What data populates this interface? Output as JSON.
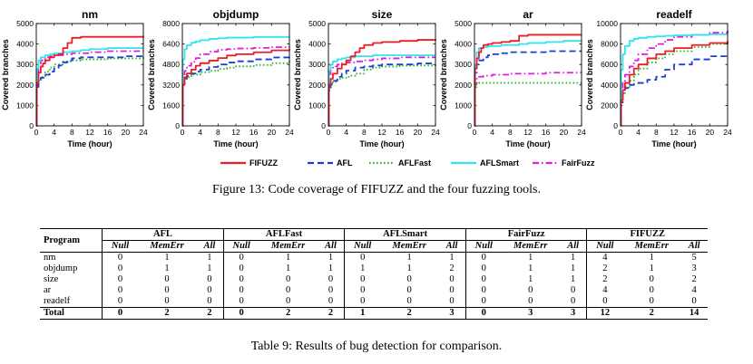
{
  "chart_data": [
    {
      "type": "line",
      "title": "nm",
      "xlabel": "Time (hour)",
      "ylabel": "Covered branches",
      "xlim": [
        0,
        24
      ],
      "ylim": [
        0,
        5000
      ],
      "xticks": [
        0,
        4,
        8,
        12,
        16,
        20,
        24
      ],
      "yticks": [
        0,
        1000,
        2000,
        3000,
        4000,
        5000
      ],
      "series": [
        {
          "name": "FIFUZZ",
          "x": [
            0,
            0.1,
            0.5,
            1,
            1.5,
            2,
            3,
            4,
            5,
            6,
            7,
            8,
            10,
            12,
            16,
            20,
            24
          ],
          "y": [
            0,
            2100,
            2600,
            2900,
            3050,
            3200,
            3350,
            3450,
            3500,
            3800,
            4050,
            4300,
            4350,
            4350,
            4350,
            4350,
            4400
          ]
        },
        {
          "name": "AFL",
          "x": [
            0,
            0.1,
            0.5,
            1,
            2,
            3,
            4,
            5,
            6,
            7,
            8,
            10,
            12,
            16,
            20,
            24
          ],
          "y": [
            0,
            1900,
            2200,
            2350,
            2500,
            2650,
            2800,
            2950,
            3100,
            3200,
            3300,
            3350,
            3350,
            3350,
            3400,
            3400
          ]
        },
        {
          "name": "AFLFast",
          "x": [
            0,
            0.1,
            0.5,
            1,
            2,
            3,
            4,
            6,
            8,
            10,
            12,
            16,
            20,
            24
          ],
          "y": [
            0,
            2000,
            2200,
            2400,
            2650,
            2850,
            3000,
            3150,
            3200,
            3250,
            3250,
            3300,
            3300,
            3350
          ]
        },
        {
          "name": "AFLSmart",
          "x": [
            0,
            0.1,
            0.5,
            1,
            2,
            3,
            4,
            6,
            8,
            10,
            12,
            16,
            20,
            24
          ],
          "y": [
            0,
            2800,
            3200,
            3350,
            3450,
            3500,
            3550,
            3600,
            3650,
            3700,
            3750,
            3800,
            3800,
            3800
          ]
        },
        {
          "name": "FairFuzz",
          "x": [
            0,
            0.1,
            0.5,
            1,
            2,
            3,
            4,
            6,
            8,
            12,
            16,
            20,
            24
          ],
          "y": [
            0,
            2600,
            3050,
            3200,
            3350,
            3400,
            3450,
            3500,
            3550,
            3600,
            3650,
            3650,
            3650
          ]
        }
      ]
    },
    {
      "type": "line",
      "title": "objdump",
      "xlabel": "Time (hour)",
      "ylabel": "Covered branches",
      "xlim": [
        0,
        24
      ],
      "ylim": [
        0,
        8000
      ],
      "xticks": [
        0,
        4,
        8,
        12,
        16,
        20,
        24
      ],
      "yticks": [
        0,
        1600,
        3200,
        4800,
        6400,
        8000
      ],
      "series": [
        {
          "name": "FIFUZZ",
          "x": [
            0,
            0.1,
            0.5,
            1,
            2,
            3,
            4,
            6,
            8,
            10,
            12,
            16,
            20,
            24
          ],
          "y": [
            0,
            3200,
            3800,
            4100,
            4400,
            4700,
            4900,
            5100,
            5300,
            5500,
            5600,
            5750,
            5900,
            6000
          ]
        },
        {
          "name": "AFL",
          "x": [
            0,
            0.1,
            0.5,
            1,
            2,
            3,
            4,
            6,
            8,
            10,
            12,
            16,
            20,
            24
          ],
          "y": [
            0,
            3300,
            3700,
            3900,
            4100,
            4250,
            4400,
            4600,
            4800,
            4950,
            5050,
            5200,
            5350,
            5450
          ]
        },
        {
          "name": "AFLFast",
          "x": [
            0,
            0.1,
            0.5,
            1,
            2,
            4,
            6,
            8,
            10,
            12,
            16,
            20,
            24
          ],
          "y": [
            0,
            3300,
            3600,
            3800,
            4000,
            4200,
            4300,
            4450,
            4550,
            4650,
            4750,
            4900,
            5100
          ]
        },
        {
          "name": "AFLSmart",
          "x": [
            0,
            0.1,
            0.5,
            1,
            2,
            3,
            4,
            6,
            8,
            10,
            12,
            16,
            20,
            24
          ],
          "y": [
            0,
            5200,
            6000,
            6300,
            6500,
            6600,
            6700,
            6800,
            6850,
            6900,
            6900,
            6950,
            6950,
            6950
          ]
        },
        {
          "name": "FairFuzz",
          "x": [
            0,
            0.1,
            0.5,
            1,
            2,
            3,
            4,
            6,
            8,
            10,
            12,
            16,
            20,
            24
          ],
          "y": [
            0,
            3800,
            4300,
            4700,
            5000,
            5300,
            5600,
            5800,
            5950,
            6000,
            6050,
            6100,
            6150,
            6200
          ]
        }
      ]
    },
    {
      "type": "line",
      "title": "size",
      "xlabel": "Time (hour)",
      "ylabel": "Covered branches",
      "xlim": [
        0,
        24
      ],
      "ylim": [
        0,
        5000
      ],
      "xticks": [
        0,
        4,
        8,
        12,
        16,
        20,
        24
      ],
      "yticks": [
        0,
        1000,
        2000,
        3000,
        4000,
        5000
      ],
      "series": [
        {
          "name": "FIFUZZ",
          "x": [
            0,
            0.1,
            0.5,
            1,
            2,
            3,
            4,
            5,
            6,
            7,
            8,
            10,
            12,
            16,
            20,
            24
          ],
          "y": [
            0,
            2000,
            2300,
            2550,
            2800,
            3000,
            3200,
            3400,
            3600,
            3800,
            3950,
            4050,
            4100,
            4150,
            4200,
            4250
          ]
        },
        {
          "name": "AFL",
          "x": [
            0,
            0.1,
            0.5,
            1,
            2,
            3,
            4,
            6,
            8,
            10,
            12,
            16,
            20,
            24
          ],
          "y": [
            0,
            1800,
            2050,
            2200,
            2400,
            2550,
            2700,
            2850,
            2900,
            2950,
            3000,
            3000,
            3050,
            3050
          ]
        },
        {
          "name": "AFLFast",
          "x": [
            0,
            0.1,
            0.5,
            1,
            2,
            3,
            4,
            5,
            6,
            8,
            10,
            12,
            16,
            20,
            24
          ],
          "y": [
            0,
            1750,
            2000,
            2150,
            2300,
            2350,
            2400,
            2450,
            2550,
            2750,
            2850,
            2900,
            2950,
            2950,
            3000
          ]
        },
        {
          "name": "AFLSmart",
          "x": [
            0,
            0.1,
            0.5,
            1,
            2,
            3,
            4,
            6,
            8,
            10,
            12,
            16,
            20,
            24
          ],
          "y": [
            0,
            2700,
            3000,
            3150,
            3250,
            3300,
            3350,
            3400,
            3400,
            3450,
            3450,
            3450,
            3450,
            3450
          ]
        },
        {
          "name": "FairFuzz",
          "x": [
            0,
            0.1,
            0.5,
            1,
            2,
            3,
            4,
            6,
            8,
            10,
            12,
            16,
            20,
            24
          ],
          "y": [
            0,
            2400,
            2750,
            2900,
            3000,
            3050,
            3100,
            3150,
            3200,
            3250,
            3300,
            3350,
            3350,
            3350
          ]
        }
      ]
    },
    {
      "type": "line",
      "title": "ar",
      "xlabel": "Time (hour)",
      "ylabel": "Covered branches",
      "xlim": [
        0,
        24
      ],
      "ylim": [
        0,
        5000
      ],
      "xticks": [
        0,
        4,
        8,
        12,
        16,
        20,
        24
      ],
      "yticks": [
        0,
        1000,
        2000,
        3000,
        4000,
        5000
      ],
      "series": [
        {
          "name": "FIFUZZ",
          "x": [
            0,
            0.1,
            0.5,
            1,
            1.5,
            2,
            3,
            4,
            6,
            8,
            10,
            12,
            16,
            20,
            24
          ],
          "y": [
            0,
            2800,
            3300,
            3600,
            3800,
            3950,
            4000,
            4050,
            4100,
            4150,
            4400,
            4450,
            4450,
            4450,
            4450
          ]
        },
        {
          "name": "AFL",
          "x": [
            0,
            0.1,
            0.5,
            1,
            2,
            3,
            4,
            6,
            8,
            12,
            16,
            20,
            24
          ],
          "y": [
            0,
            2600,
            3000,
            3200,
            3350,
            3450,
            3500,
            3550,
            3600,
            3600,
            3650,
            3650,
            3650
          ]
        },
        {
          "name": "AFLFast",
          "x": [
            0,
            0.1,
            0.5,
            1,
            2,
            4,
            8,
            12,
            16,
            20,
            24
          ],
          "y": [
            0,
            1900,
            2050,
            2100,
            2100,
            2100,
            2100,
            2100,
            2100,
            2100,
            2100
          ]
        },
        {
          "name": "AFLSmart",
          "x": [
            0,
            0.1,
            0.5,
            1,
            2,
            3,
            4,
            6,
            8,
            10,
            12,
            16,
            20,
            24
          ],
          "y": [
            0,
            3000,
            3600,
            3800,
            3850,
            3900,
            3900,
            3950,
            3950,
            4000,
            4050,
            4100,
            4150,
            4150
          ]
        },
        {
          "name": "FairFuzz",
          "x": [
            0,
            0.1,
            0.5,
            1,
            2,
            4,
            6,
            8,
            12,
            16,
            20,
            24
          ],
          "y": [
            0,
            2100,
            2300,
            2400,
            2450,
            2500,
            2500,
            2550,
            2550,
            2600,
            2600,
            2600
          ]
        }
      ]
    },
    {
      "type": "line",
      "title": "readelf",
      "xlabel": "Time (hour)",
      "ylabel": "Covered branches",
      "xlim": [
        0,
        24
      ],
      "ylim": [
        0,
        10000
      ],
      "xticks": [
        0,
        4,
        8,
        12,
        16,
        20,
        24
      ],
      "yticks": [
        0,
        2000,
        4000,
        6000,
        8000,
        10000
      ],
      "series": [
        {
          "name": "FIFUZZ",
          "x": [
            0,
            0.1,
            0.5,
            1,
            2,
            3,
            4,
            6,
            8,
            10,
            12,
            16,
            20,
            24
          ],
          "y": [
            0,
            2500,
            3500,
            4200,
            5000,
            5600,
            6000,
            6600,
            7000,
            7300,
            7600,
            7900,
            8100,
            8300
          ]
        },
        {
          "name": "AFL",
          "x": [
            0,
            0.1,
            0.5,
            1,
            2,
            3,
            4,
            6,
            8,
            10,
            12,
            16,
            20,
            24
          ],
          "y": [
            0,
            2300,
            3200,
            3700,
            4000,
            4100,
            4200,
            4500,
            4800,
            5500,
            6000,
            6500,
            6800,
            7000
          ]
        },
        {
          "name": "AFLFast",
          "x": [
            0,
            0.1,
            0.5,
            1,
            2,
            3,
            4,
            6,
            8,
            10,
            12,
            16,
            20,
            24
          ],
          "y": [
            0,
            2300,
            3200,
            3800,
            4400,
            5000,
            5600,
            6200,
            6600,
            7000,
            7300,
            7700,
            8000,
            8200
          ]
        },
        {
          "name": "AFLSmart",
          "x": [
            0,
            0.1,
            0.5,
            1,
            2,
            3,
            4,
            6,
            8,
            10,
            12,
            16,
            20,
            24
          ],
          "y": [
            0,
            5500,
            7000,
            7800,
            8300,
            8500,
            8600,
            8700,
            8750,
            8800,
            8850,
            8900,
            8950,
            9000
          ]
        },
        {
          "name": "FairFuzz",
          "x": [
            0,
            0.1,
            0.5,
            1,
            2,
            3,
            4,
            6,
            8,
            10,
            12,
            16,
            20,
            24
          ],
          "y": [
            0,
            3000,
            4200,
            5000,
            5800,
            6400,
            7000,
            7600,
            8000,
            8400,
            8700,
            8900,
            9100,
            9300
          ]
        }
      ]
    }
  ],
  "legend": [
    {
      "name": "FIFUZZ",
      "color": "#ee1c24",
      "dash": "solid"
    },
    {
      "name": "AFL",
      "color": "#1a3fd6",
      "dash": "dash"
    },
    {
      "name": "AFLFast",
      "color": "#2ab52a",
      "dash": "dot"
    },
    {
      "name": "AFLSmart",
      "color": "#2ee6ee",
      "dash": "solid"
    },
    {
      "name": "FairFuzz",
      "color": "#e11ce1",
      "dash": "dashdot"
    }
  ],
  "figure_caption": "Figure 13: Code coverage of FIFUZZ and the four fuzzing tools.",
  "table": {
    "program_header": "Program",
    "tools": [
      "AFL",
      "AFLFast",
      "AFLSmart",
      "FairFuzz",
      "FIFUZZ"
    ],
    "subheaders": [
      "Null",
      "MemErr",
      "All"
    ],
    "rows": [
      {
        "program": "nm",
        "values": [
          "0",
          "1",
          "1",
          "0",
          "1",
          "1",
          "0",
          "1",
          "1",
          "0",
          "1",
          "1",
          "4",
          "1",
          "5"
        ]
      },
      {
        "program": "objdump",
        "values": [
          "0",
          "1",
          "1",
          "0",
          "1",
          "1",
          "1",
          "1",
          "2",
          "0",
          "1",
          "1",
          "2",
          "1",
          "3"
        ]
      },
      {
        "program": "size",
        "values": [
          "0",
          "0",
          "0",
          "0",
          "0",
          "0",
          "0",
          "0",
          "0",
          "0",
          "1",
          "1",
          "2",
          "0",
          "2"
        ]
      },
      {
        "program": "ar",
        "values": [
          "0",
          "0",
          "0",
          "0",
          "0",
          "0",
          "0",
          "0",
          "0",
          "0",
          "0",
          "0",
          "4",
          "0",
          "4"
        ]
      },
      {
        "program": "readelf",
        "values": [
          "0",
          "0",
          "0",
          "0",
          "0",
          "0",
          "0",
          "0",
          "0",
          "0",
          "0",
          "0",
          "0",
          "0",
          "0"
        ]
      }
    ],
    "total": {
      "program": "Total",
      "values": [
        "0",
        "2",
        "2",
        "0",
        "2",
        "2",
        "1",
        "2",
        "3",
        "0",
        "3",
        "3",
        "12",
        "2",
        "14"
      ]
    }
  },
  "table_caption": "Table 9: Results of bug detection for comparison."
}
